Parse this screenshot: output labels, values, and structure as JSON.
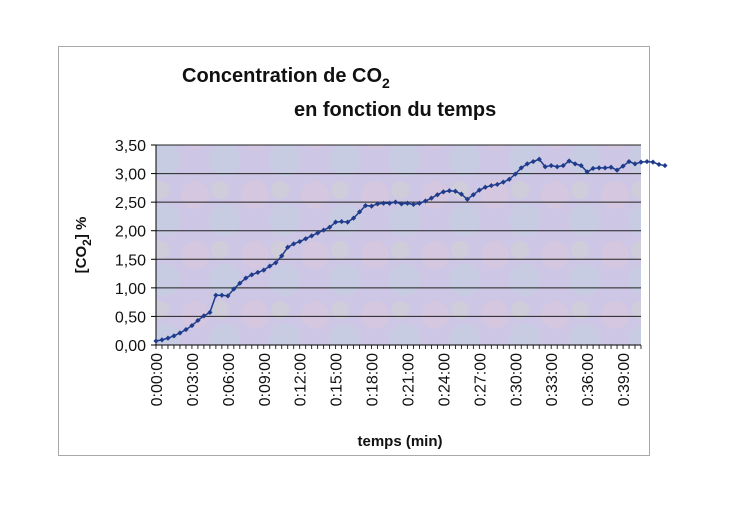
{
  "chart_data": {
    "type": "line",
    "title_line1": "Concentration de CO",
    "title_line1_sub": "2",
    "title_line2": "en fonction du temps",
    "xlabel": "temps (min)",
    "ylabel_prefix": "[CO",
    "ylabel_sub": "2",
    "ylabel_suffix": "] %",
    "y_ticks": [
      "0,00",
      "0,50",
      "1,00",
      "1,50",
      "2,00",
      "2,50",
      "3,00",
      "3,50"
    ],
    "ylim": [
      0,
      3.5
    ],
    "x_ticks": [
      "0:00:00",
      "0:03:00",
      "0:06:00",
      "0:09:00",
      "0:12:00",
      "0:15:00",
      "0:18:00",
      "0:21:00",
      "0:24:00",
      "0:27:00",
      "0:30:00",
      "0:33:00",
      "0:36:00",
      "0:39:00"
    ],
    "x_tick_minutes": [
      0,
      3,
      6,
      9,
      12,
      15,
      18,
      21,
      24,
      27,
      30,
      33,
      36,
      39
    ],
    "xlim_minutes": [
      0,
      40.5
    ],
    "x_interval_seconds": 30,
    "grid": "horizontal",
    "marker": "diamond",
    "legend": "none",
    "colors": {
      "line": "#1f3c8c",
      "plot_bg": "#cdc6e4",
      "grid": "#222222"
    },
    "series": [
      {
        "values": [
          0.07,
          0.09,
          0.12,
          0.16,
          0.21,
          0.27,
          0.34,
          0.43,
          0.51,
          0.57,
          0.87,
          0.87,
          0.86,
          0.98,
          1.08,
          1.17,
          1.23,
          1.27,
          1.31,
          1.38,
          1.44,
          1.56,
          1.71,
          1.77,
          1.81,
          1.86,
          1.91,
          1.96,
          2.01,
          2.06,
          2.15,
          2.16,
          2.15,
          2.22,
          2.33,
          2.44,
          2.43,
          2.47,
          2.48,
          2.48,
          2.5,
          2.47,
          2.48,
          2.46,
          2.48,
          2.52,
          2.57,
          2.63,
          2.68,
          2.7,
          2.69,
          2.64,
          2.55,
          2.63,
          2.71,
          2.76,
          2.79,
          2.81,
          2.85,
          2.9,
          2.99,
          3.1,
          3.17,
          3.21,
          3.25,
          3.12,
          3.14,
          3.12,
          3.14,
          3.22,
          3.17,
          3.14,
          3.03,
          3.09,
          3.1,
          3.1,
          3.11,
          3.06,
          3.13,
          3.21,
          3.17,
          3.2,
          3.21,
          3.2,
          3.16,
          3.14
        ]
      }
    ]
  }
}
